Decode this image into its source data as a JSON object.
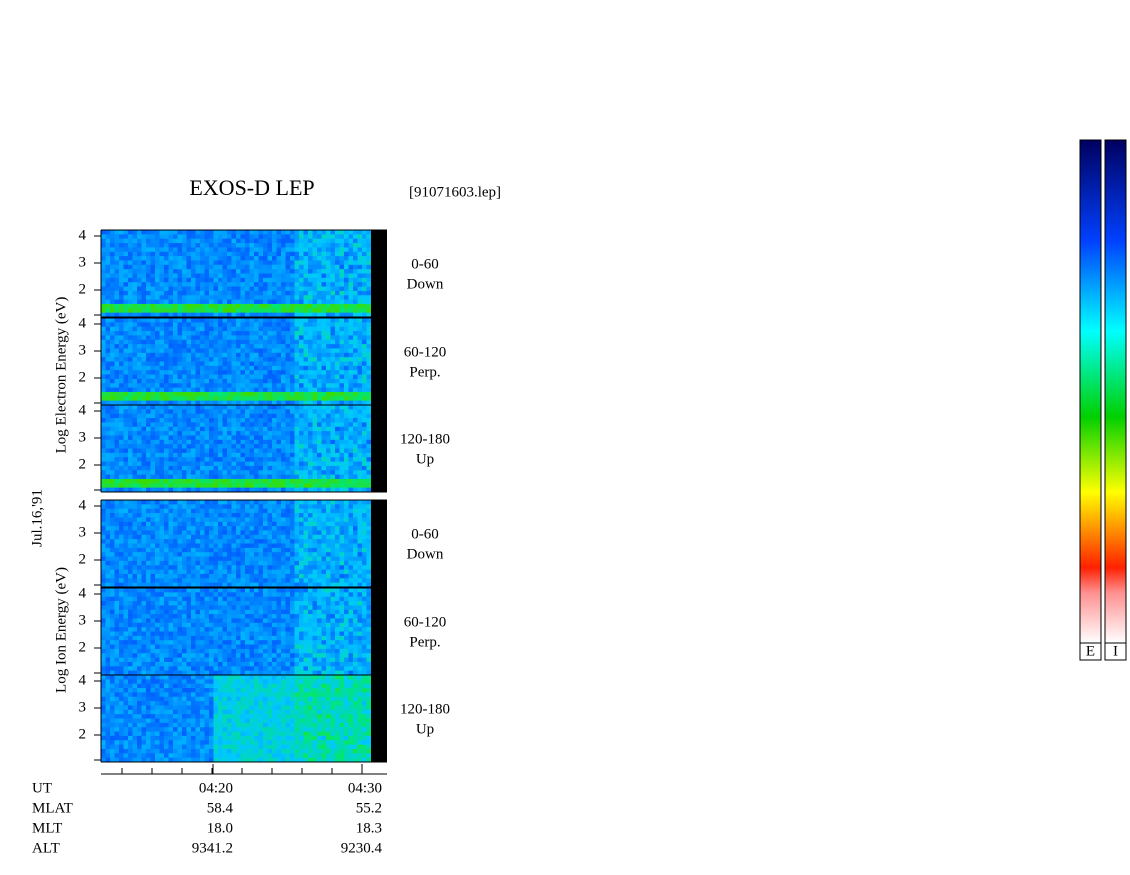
{
  "header": {
    "title": "EXOS-D LEP",
    "file": "[91071603.lep]"
  },
  "date": "Jul.16,'91",
  "groups": [
    {
      "axis_label": "Log Electron Energy (eV)",
      "panels": [
        {
          "yticks": [
            "4",
            "3",
            "2"
          ],
          "angle": "0-60",
          "direction": "Down"
        },
        {
          "yticks": [
            "4",
            "3",
            "2"
          ],
          "angle": "60-120",
          "direction": "Perp."
        },
        {
          "yticks": [
            "4",
            "3",
            "2"
          ],
          "angle": "120-180",
          "direction": "Up"
        }
      ]
    },
    {
      "axis_label": "Log Ion Energy (eV)",
      "panels": [
        {
          "yticks": [
            "4",
            "3",
            "2"
          ],
          "angle": "0-60",
          "direction": "Down"
        },
        {
          "yticks": [
            "4",
            "3",
            "2"
          ],
          "angle": "60-120",
          "direction": "Perp."
        },
        {
          "yticks": [
            "4",
            "3",
            "2"
          ],
          "angle": "120-180",
          "direction": "Up"
        }
      ]
    }
  ],
  "orbit": {
    "rows": [
      {
        "label": "UT",
        "values": [
          "04:20",
          "04:30"
        ]
      },
      {
        "label": "MLAT",
        "values": [
          "58.4",
          "55.2"
        ]
      },
      {
        "label": "MLT",
        "values": [
          "18.0",
          "18.3"
        ]
      },
      {
        "label": "ALT",
        "values": [
          "9341.2",
          "9230.4"
        ]
      }
    ]
  },
  "colorbars": [
    "E",
    "I"
  ]
}
